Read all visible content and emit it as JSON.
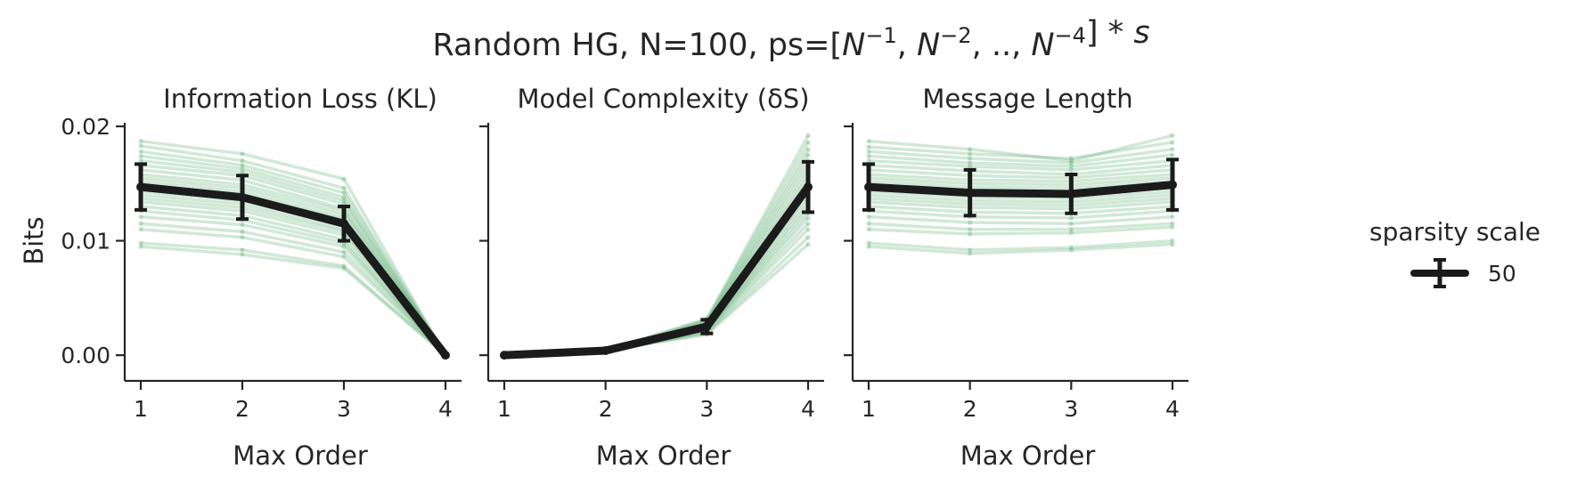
{
  "title": {
    "prefix": "Random HG, N=100, ps=[",
    "base": "N",
    "exponents": [
      "−1",
      "−2",
      "−4"
    ],
    "separators": [
      ", ",
      ", ..,  "
    ],
    "suffix": "] * ",
    "factor": "s"
  },
  "colors": {
    "individual": "#5aae70",
    "mean": "#1b1b1b",
    "axis": "#262626"
  },
  "chart_data": [
    {
      "type": "line",
      "title": "Information Loss (KL)",
      "xlabel": "Max Order",
      "ylabel": "Bits",
      "x": [
        1,
        2,
        3,
        4
      ],
      "xticks": [
        "1",
        "2",
        "3",
        "4"
      ],
      "ylim": [
        -0.001,
        0.02
      ],
      "yticks": [
        0.0,
        0.01,
        0.02
      ],
      "yticklabels": [
        "0.00",
        "0.01",
        "0.02"
      ],
      "series": [
        {
          "values": [
            0.0147,
            0.0138,
            0.0115,
            0.0
          ],
          "error": [
            0.002,
            0.0019,
            0.0015,
            0.0
          ]
        }
      ],
      "individual_runs": [
        [
          0.0187,
          0.0176,
          0.0154,
          0.0
        ],
        [
          0.0183,
          0.017,
          0.0146,
          0.0
        ],
        [
          0.0178,
          0.0166,
          0.0142,
          0.0
        ],
        [
          0.0174,
          0.0163,
          0.0138,
          0.0
        ],
        [
          0.017,
          0.016,
          0.0135,
          0.0
        ],
        [
          0.0166,
          0.0157,
          0.0132,
          0.0
        ],
        [
          0.0162,
          0.0153,
          0.0128,
          0.0
        ],
        [
          0.0158,
          0.0149,
          0.0126,
          0.0
        ],
        [
          0.0155,
          0.0146,
          0.0123,
          0.0
        ],
        [
          0.0152,
          0.0143,
          0.012,
          0.0
        ],
        [
          0.0149,
          0.014,
          0.0118,
          0.0
        ],
        [
          0.0146,
          0.0137,
          0.0116,
          0.0
        ],
        [
          0.0143,
          0.0135,
          0.0113,
          0.0
        ],
        [
          0.014,
          0.0132,
          0.011,
          0.0
        ],
        [
          0.0137,
          0.0129,
          0.0108,
          0.0
        ],
        [
          0.0134,
          0.0126,
          0.0105,
          0.0
        ],
        [
          0.013,
          0.0122,
          0.0101,
          0.0
        ],
        [
          0.0126,
          0.0118,
          0.0098,
          0.0
        ],
        [
          0.0121,
          0.0114,
          0.0095,
          0.0
        ],
        [
          0.0115,
          0.0108,
          0.009,
          0.0
        ],
        [
          0.011,
          0.0103,
          0.0086,
          0.0
        ],
        [
          0.0098,
          0.0092,
          0.0078,
          0.0
        ],
        [
          0.0095,
          0.0088,
          0.0076,
          0.0
        ]
      ]
    },
    {
      "type": "line",
      "title": "Model Complexity (δS)",
      "xlabel": "Max Order",
      "ylabel": "",
      "x": [
        1,
        2,
        3,
        4
      ],
      "xticks": [
        "1",
        "2",
        "3",
        "4"
      ],
      "ylim": [
        -0.001,
        0.02
      ],
      "yticks": [
        0.0,
        0.01,
        0.02
      ],
      "yticklabels": [
        "",
        "",
        ""
      ],
      "series": [
        {
          "values": [
            0.0,
            0.0004,
            0.0025,
            0.0147
          ],
          "error": [
            0.0,
            0.0001,
            0.0006,
            0.0022
          ]
        }
      ],
      "individual_runs": [
        [
          0.0,
          0.0004,
          0.0032,
          0.0192
        ],
        [
          0.0,
          0.0004,
          0.0031,
          0.0186
        ],
        [
          0.0,
          0.0004,
          0.003,
          0.018
        ],
        [
          0.0,
          0.0004,
          0.0029,
          0.0175
        ],
        [
          0.0,
          0.0004,
          0.0028,
          0.017
        ],
        [
          0.0,
          0.0004,
          0.0028,
          0.0165
        ],
        [
          0.0,
          0.0004,
          0.0027,
          0.016
        ],
        [
          0.0,
          0.0004,
          0.0026,
          0.0156
        ],
        [
          0.0,
          0.0004,
          0.0026,
          0.0152
        ],
        [
          0.0,
          0.0004,
          0.0025,
          0.0148
        ],
        [
          0.0,
          0.0004,
          0.0025,
          0.0144
        ],
        [
          0.0,
          0.0004,
          0.0024,
          0.014
        ],
        [
          0.0,
          0.0004,
          0.0024,
          0.0136
        ],
        [
          0.0,
          0.0004,
          0.0023,
          0.0132
        ],
        [
          0.0,
          0.0004,
          0.0023,
          0.0128
        ],
        [
          0.0,
          0.0004,
          0.0022,
          0.0124
        ],
        [
          0.0,
          0.0004,
          0.0022,
          0.012
        ],
        [
          0.0,
          0.0004,
          0.0021,
          0.0115
        ],
        [
          0.0,
          0.0004,
          0.002,
          0.011
        ],
        [
          0.0,
          0.0004,
          0.0019,
          0.0103
        ],
        [
          0.0,
          0.0004,
          0.0018,
          0.0097
        ]
      ]
    },
    {
      "type": "line",
      "title": "Message Length",
      "xlabel": "Max Order",
      "ylabel": "",
      "x": [
        1,
        2,
        3,
        4
      ],
      "xticks": [
        "1",
        "2",
        "3",
        "4"
      ],
      "ylim": [
        -0.001,
        0.02
      ],
      "yticks": [
        0.0,
        0.01,
        0.02
      ],
      "yticklabels": [
        "",
        "",
        ""
      ],
      "series": [
        {
          "values": [
            0.0147,
            0.0142,
            0.0141,
            0.0149
          ],
          "error": [
            0.002,
            0.002,
            0.0017,
            0.0022
          ]
        }
      ],
      "individual_runs": [
        [
          0.0187,
          0.018,
          0.017,
          0.0192
        ],
        [
          0.0182,
          0.0176,
          0.0172,
          0.0186
        ],
        [
          0.0178,
          0.0172,
          0.0168,
          0.018
        ],
        [
          0.0174,
          0.0168,
          0.0165,
          0.0175
        ],
        [
          0.017,
          0.0165,
          0.0162,
          0.017
        ],
        [
          0.0166,
          0.0161,
          0.0158,
          0.0166
        ],
        [
          0.0162,
          0.0157,
          0.0155,
          0.0162
        ],
        [
          0.0158,
          0.0153,
          0.0152,
          0.0158
        ],
        [
          0.0155,
          0.015,
          0.0149,
          0.0155
        ],
        [
          0.0152,
          0.0147,
          0.0146,
          0.0152
        ],
        [
          0.0149,
          0.0144,
          0.0143,
          0.0149
        ],
        [
          0.0146,
          0.0141,
          0.014,
          0.0146
        ],
        [
          0.0143,
          0.0138,
          0.0137,
          0.0143
        ],
        [
          0.014,
          0.0135,
          0.0134,
          0.014
        ],
        [
          0.0137,
          0.0132,
          0.0131,
          0.0137
        ],
        [
          0.0134,
          0.0129,
          0.0128,
          0.0134
        ],
        [
          0.013,
          0.0125,
          0.0124,
          0.013
        ],
        [
          0.0126,
          0.0121,
          0.012,
          0.0126
        ],
        [
          0.0121,
          0.0116,
          0.0115,
          0.0121
        ],
        [
          0.0115,
          0.011,
          0.011,
          0.0115
        ],
        [
          0.011,
          0.0106,
          0.0107,
          0.0112
        ],
        [
          0.0098,
          0.0092,
          0.0094,
          0.01
        ],
        [
          0.0095,
          0.0089,
          0.0092,
          0.0097
        ]
      ]
    }
  ],
  "legend": {
    "title": "sparsity scale",
    "entries": [
      {
        "label": "50"
      }
    ]
  }
}
